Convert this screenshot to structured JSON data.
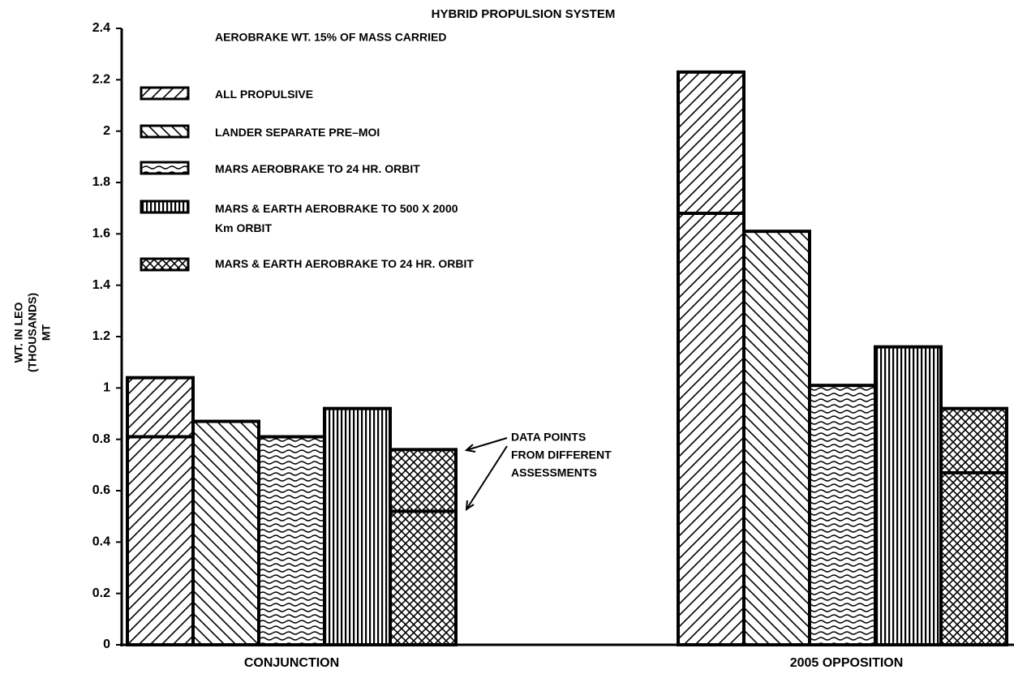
{
  "chart_data": {
    "type": "bar",
    "title": "HYBRID PROPULSION SYSTEM",
    "subtitle": "AEROBRAKE WT. 15% OF MASS CARRIED",
    "ylabel": [
      "WT. IN LEO",
      "(THOUSANDS)",
      "MT"
    ],
    "annotation": [
      "DATA POINTS",
      "FROM DIFFERENT",
      "ASSESSMENTS"
    ],
    "categories": [
      "CONJUNCTION",
      "2005 OPPOSITION"
    ],
    "series": [
      {
        "name": "ALL PROPULSIVE",
        "color": "#000000",
        "values": [
          1.04,
          2.23
        ],
        "lower_values": [
          0.81,
          1.68
        ]
      },
      {
        "name": "LANDER SEPARATE PRE–MOI",
        "color": "#000000",
        "values": [
          0.87,
          1.61
        ],
        "lower_values": [
          null,
          null
        ]
      },
      {
        "name": "MARS AEROBRAKE TO 24 HR. ORBIT",
        "color": "#000000",
        "values": [
          0.81,
          1.01
        ],
        "lower_values": [
          null,
          null
        ]
      },
      {
        "name": "MARS & EARTH AEROBRAKE TO 500 X 2000 Km ORBIT",
        "color": "#000000",
        "values": [
          0.92,
          1.16
        ],
        "lower_values": [
          null,
          null
        ]
      },
      {
        "name": "MARS & EARTH AEROBRAKE TO 24 HR. ORBIT",
        "color": "#000000",
        "values": [
          0.76,
          0.92
        ],
        "lower_values": [
          0.52,
          0.67
        ]
      }
    ],
    "ylim": [
      0,
      2.4
    ],
    "yticks": [
      0,
      0.2,
      0.4,
      0.6,
      0.8,
      1,
      1.2,
      1.4,
      1.6,
      1.8,
      2,
      2.2,
      2.4
    ],
    "grid": false
  }
}
